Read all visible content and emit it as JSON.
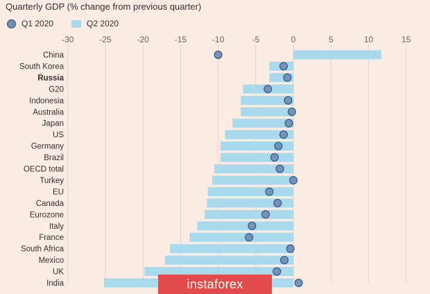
{
  "chart_data": {
    "type": "bar",
    "title": "Quarterly GDP (% change from previous quarter)",
    "xlim": [
      -30,
      15
    ],
    "x_ticks": [
      -30,
      -25,
      -20,
      -15,
      -10,
      -5,
      0,
      5,
      10,
      15
    ],
    "grid": true,
    "legend_position": "top-left",
    "highlighted_category": "Russia",
    "categories": [
      "China",
      "South Korea",
      "Russia",
      "G20",
      "Indonesia",
      "Australia",
      "Japan",
      "US",
      "Germany",
      "Brazil",
      "OECD total",
      "Turkey",
      "EU",
      "Canada",
      "Eurozone",
      "Italy",
      "France",
      "South Africa",
      "Mexico",
      "UK",
      "India"
    ],
    "series": [
      {
        "name": "Q1 2020",
        "kind": "dot",
        "color": "#6f8fb8",
        "values": [
          -10.0,
          -1.3,
          -0.8,
          -3.4,
          -0.7,
          -0.2,
          -0.6,
          -1.3,
          -2.0,
          -2.5,
          -1.8,
          0.0,
          -3.2,
          -2.1,
          -3.7,
          -5.5,
          -5.9,
          -0.4,
          -1.2,
          -2.2,
          0.7
        ]
      },
      {
        "name": "Q2 2020",
        "kind": "bar",
        "color": "#a8d9ec",
        "values": [
          11.7,
          -3.2,
          -3.2,
          -6.7,
          -7.0,
          -7.0,
          -8.1,
          -9.1,
          -9.7,
          -9.7,
          -10.5,
          -10.8,
          -11.4,
          -11.5,
          -11.8,
          -12.8,
          -13.8,
          -16.4,
          -17.1,
          -19.8,
          -25.2
        ]
      }
    ]
  },
  "watermark": "instaforex"
}
